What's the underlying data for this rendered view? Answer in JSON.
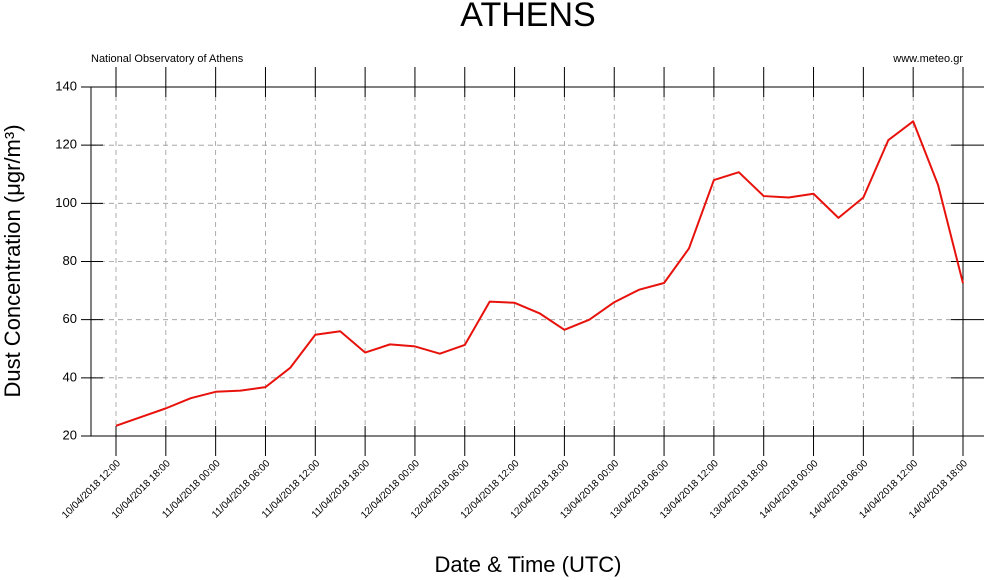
{
  "chart_data": {
    "type": "line",
    "title": "ATHENS",
    "subtitle_left": "National Observatory of Athens",
    "subtitle_right": "www.meteo.gr",
    "x_label": "Date & Time (UTC)",
    "y_label": "Dust Concentration (μgr/m³)",
    "categories": [
      "10/04/2018 12:00",
      null,
      "10/04/2018 18:00",
      null,
      "11/04/2018 00:00",
      null,
      "11/04/2018 06:00",
      null,
      "11/04/2018 12:00",
      null,
      "11/04/2018 18:00",
      null,
      "12/04/2018 00:00",
      null,
      "12/04/2018 06:00",
      null,
      "12/04/2018 12:00",
      null,
      "12/04/2018 18:00",
      null,
      "13/04/2018 00:00",
      null,
      "13/04/2018 06:00",
      null,
      "13/04/2018 12:00",
      null,
      "13/04/2018 18:00",
      null,
      "14/04/2018 00:00",
      null,
      "14/04/2018 06:00",
      null,
      "14/04/2018 12:00",
      null,
      "14/04/2018 18:00"
    ],
    "series": [
      {
        "name": "Dust Concentration",
        "color": "#e8120c",
        "values": [
          23.5,
          26.5,
          29.5,
          33,
          35.2,
          35.6,
          36.8,
          43.5,
          54.8,
          56,
          48.7,
          51.5,
          50.8,
          48.3,
          51.3,
          66.2,
          65.8,
          62.2,
          56.5,
          60,
          66,
          70.3,
          72.6,
          84.5,
          108,
          110.7,
          102.5,
          102,
          103.3,
          95,
          102,
          121.7,
          128.2,
          106.3,
          72.5
        ]
      }
    ],
    "ylim": [
      20,
      140
    ],
    "yticks": [
      20,
      40,
      60,
      80,
      100,
      120,
      140
    ],
    "grid": true
  }
}
